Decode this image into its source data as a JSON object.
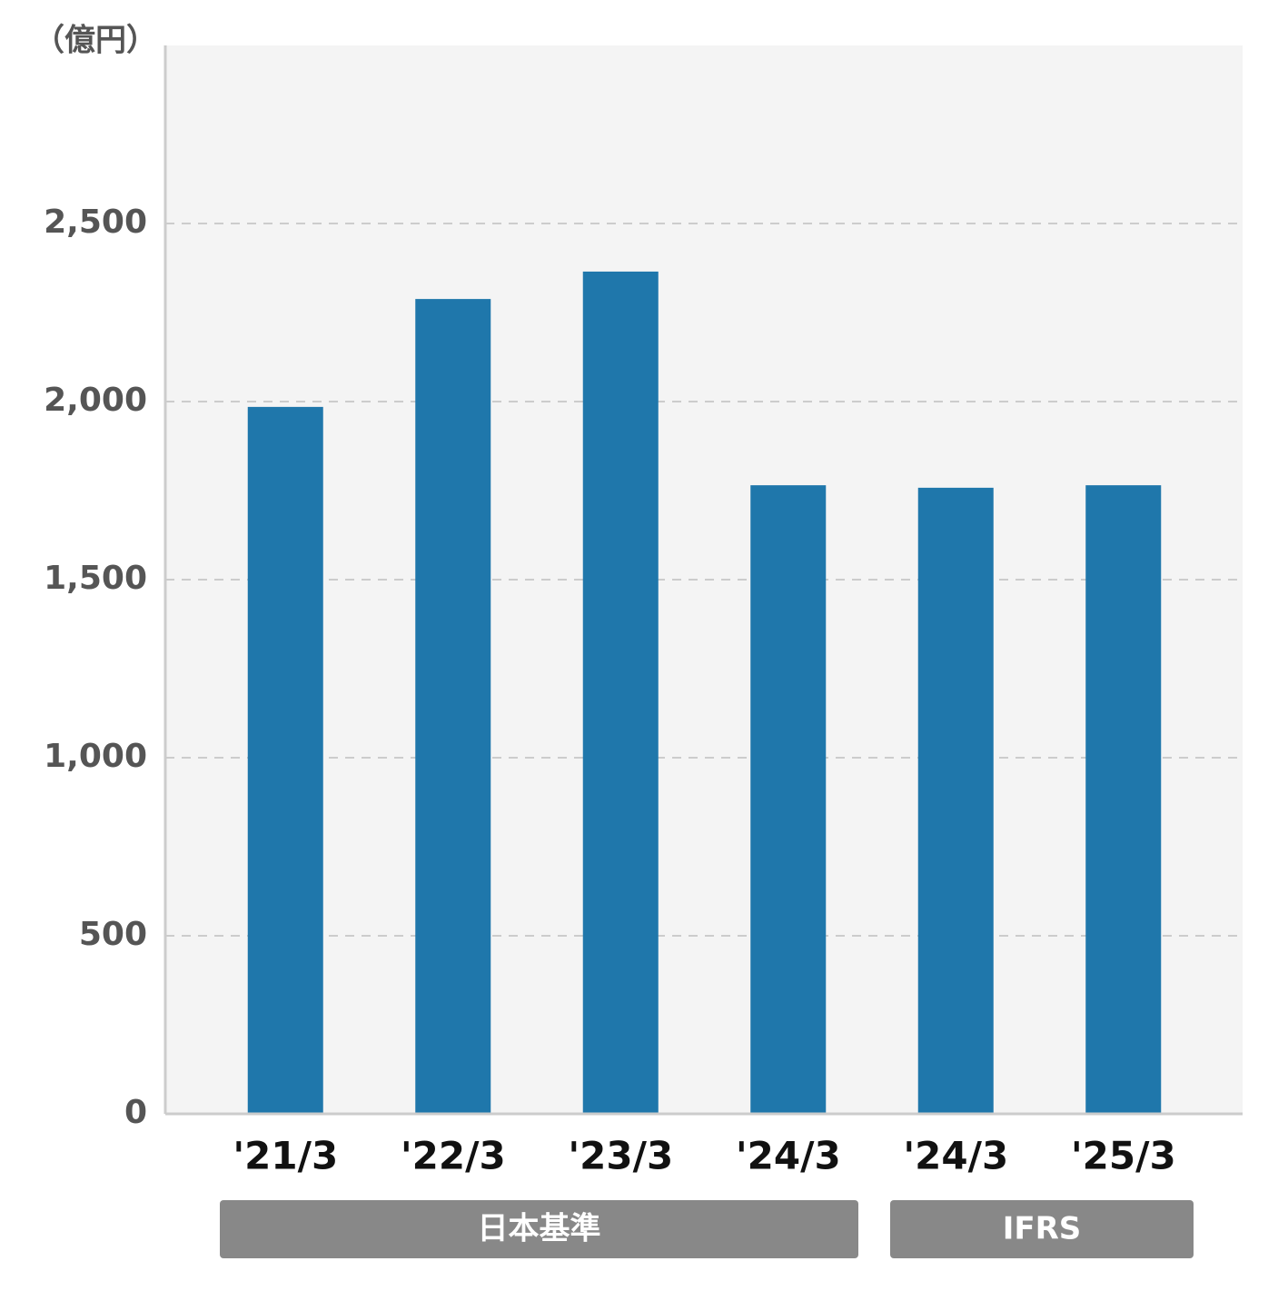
{
  "chart_data": {
    "type": "bar",
    "y_unit_label": "（億円）",
    "category_groups": [
      {
        "label": "日本基準",
        "categories": [
          "'21/3",
          "'22/3",
          "'23/3",
          "'24/3"
        ]
      },
      {
        "label": "IFRS",
        "categories": [
          "'24/3",
          "'25/3"
        ]
      }
    ],
    "values": [
      1985,
      2288,
      2365,
      1765,
      1758,
      1765
    ],
    "color": "#1f77ab",
    "ylim": [
      0,
      3000
    ],
    "yticks": [
      0,
      500,
      {
        "value": 1000,
        "label": "1,000"
      },
      {
        "value": 1500,
        "label": "1,500"
      },
      {
        "value": 2000,
        "label": "2,000"
      },
      {
        "value": 2500,
        "label": "2,500"
      }
    ],
    "grid": true
  }
}
